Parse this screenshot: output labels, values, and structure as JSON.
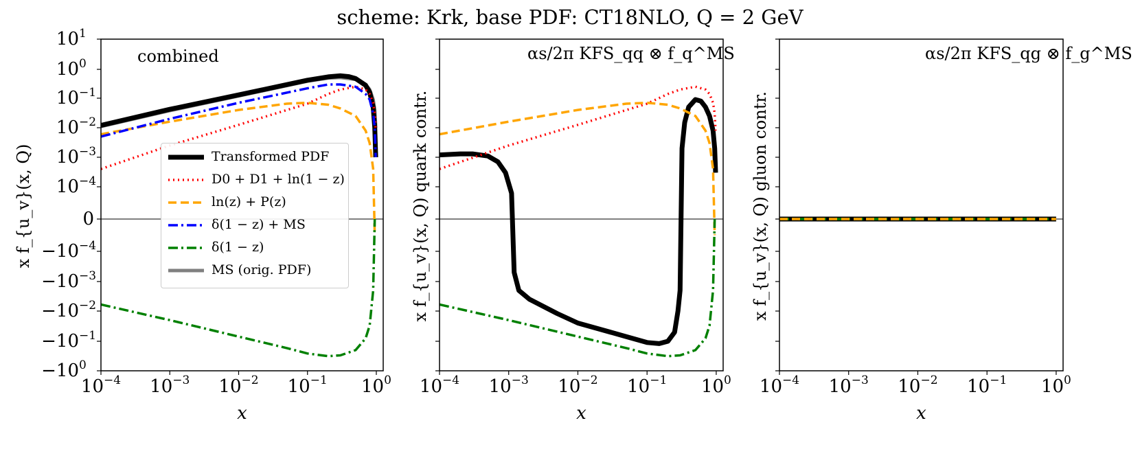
{
  "title": "scheme: Krk, base PDF: CT18NLO, Q = 2 GeV",
  "chart_data": [
    {
      "type": "line",
      "panel_title": "combined",
      "xlabel": "x",
      "ylabel": "x f_{u_v}(x, Q)",
      "xscale": "log",
      "yscale": "symlog",
      "xlim": [
        0.0001,
        1.0
      ],
      "ylim": [
        -1.0,
        10.0
      ],
      "xticks": [
        "10^-4",
        "10^-3",
        "10^-2",
        "10^-1",
        "10^0"
      ],
      "yticks": [
        "10^1",
        "10^0",
        "10^-1",
        "10^-2",
        "10^-3",
        "10^-4",
        "0",
        "-10^-4",
        "-10^-3",
        "-10^-2",
        "-10^-1",
        "-10^0"
      ],
      "series": [
        {
          "name": "MS-bar (orig. PDF)",
          "style": "solid",
          "color": "#808080",
          "x": [
            0.0001,
            0.001,
            0.01,
            0.1,
            0.2,
            0.3,
            0.5,
            0.7,
            0.8,
            0.9,
            0.95,
            0.98
          ],
          "y": [
            0.011,
            0.038,
            0.12,
            0.39,
            0.5,
            0.52,
            0.45,
            0.3,
            0.2,
            0.09,
            0.04,
            0.01
          ]
        },
        {
          "name": "Transformed PDF",
          "style": "solid",
          "color": "#000000",
          "x": [
            0.0001,
            0.001,
            0.01,
            0.1,
            0.2,
            0.3,
            0.4,
            0.5,
            0.7,
            0.8,
            0.9,
            0.95,
            0.98
          ],
          "y": [
            0.012,
            0.042,
            0.13,
            0.42,
            0.55,
            0.6,
            0.56,
            0.48,
            0.28,
            0.16,
            0.05,
            0.01,
            0.001
          ]
        },
        {
          "name": "D0 + D1 + ln(1-z)",
          "style": "dotted",
          "color": "#ff0000",
          "x": [
            0.0001,
            0.001,
            0.01,
            0.1,
            0.2,
            0.3,
            0.5,
            0.7,
            0.8,
            0.9,
            0.95,
            0.98
          ],
          "y": [
            0.0004,
            0.0025,
            0.0125,
            0.065,
            0.14,
            0.2,
            0.25,
            0.2,
            0.14,
            0.07,
            0.03,
            0.008
          ]
        },
        {
          "name": "ln(z) + P(z)",
          "style": "dashed",
          "color": "#ffa500",
          "x": [
            0.0001,
            0.001,
            0.01,
            0.05,
            0.1,
            0.2,
            0.3,
            0.5,
            0.7,
            0.8,
            0.9,
            0.95
          ],
          "y": [
            0.006,
            0.016,
            0.04,
            0.065,
            0.07,
            0.06,
            0.045,
            0.025,
            0.008,
            0.003,
            0.0004,
            -5e-05
          ]
        },
        {
          "name": "delta(1-z) + MS-bar",
          "style": "dashdot",
          "color": "#0000ff",
          "x": [
            0.0001,
            0.001,
            0.01,
            0.1,
            0.2,
            0.3,
            0.5,
            0.7,
            0.8,
            0.9,
            0.95,
            0.98
          ],
          "y": [
            0.005,
            0.02,
            0.07,
            0.22,
            0.3,
            0.3,
            0.25,
            0.14,
            0.09,
            0.03,
            0.01,
            0.001
          ]
        },
        {
          "name": "delta(1-z)",
          "style": "dashdot",
          "color": "#008000",
          "x": [
            0.0001,
            0.001,
            0.01,
            0.05,
            0.1,
            0.2,
            0.3,
            0.5,
            0.7,
            0.8,
            0.9,
            0.95
          ],
          "y": [
            -0.006,
            -0.02,
            -0.07,
            -0.17,
            -0.26,
            -0.32,
            -0.3,
            -0.2,
            -0.08,
            -0.03,
            -0.002,
            0.0
          ]
        }
      ],
      "legend": [
        {
          "label": "Transformed PDF",
          "color": "#000000",
          "style": "solid"
        },
        {
          "label": "D0 + D1 + ln(1 − z)",
          "color": "#ff0000",
          "style": "dotted"
        },
        {
          "label": "ln(z) + P(z)",
          "color": "#ffa500",
          "style": "dashed"
        },
        {
          "label": "δ(1 − z) + MS",
          "color": "#0000ff",
          "style": "dashdot"
        },
        {
          "label": "δ(1 − z)",
          "color": "#008000",
          "style": "dashdot"
        },
        {
          "label": "MS (orig. PDF)",
          "color": "#808080",
          "style": "solid"
        }
      ]
    },
    {
      "type": "line",
      "panel_title": "αs/2π KFS_qq ⊗ f_q^MS",
      "xlabel": "x",
      "ylabel": "x f_{u_v}(x, Q) quark contr.",
      "xscale": "log",
      "yscale": "symlog",
      "xlim": [
        0.0001,
        1.0
      ],
      "ylim": [
        -1.0,
        10.0
      ],
      "series": [
        {
          "name": "Transformed PDF",
          "style": "solid",
          "color": "#000000",
          "x": [
            0.0001,
            0.0002,
            0.0003,
            0.0005,
            0.0007,
            0.0009,
            0.0011,
            0.0012,
            0.0014,
            0.002,
            0.005,
            0.01,
            0.05,
            0.1,
            0.15,
            0.2,
            0.25,
            0.28,
            0.3,
            0.32,
            0.35,
            0.4,
            0.5,
            0.6,
            0.7,
            0.8,
            0.9,
            0.95,
            0.98
          ],
          "y": [
            0.0012,
            0.0013,
            0.0013,
            0.0011,
            0.0007,
            0.0003,
            8e-05,
            -0.0005,
            -0.002,
            -0.004,
            -0.012,
            -0.025,
            -0.07,
            -0.11,
            -0.12,
            -0.1,
            -0.05,
            -0.01,
            -0.002,
            0.002,
            0.015,
            0.05,
            0.09,
            0.08,
            0.05,
            0.025,
            0.008,
            0.002,
            0.0003
          ]
        },
        {
          "name": "D0 + D1 + ln(1-z)",
          "style": "dotted",
          "color": "#ff0000",
          "x": [
            0.0001,
            0.001,
            0.01,
            0.1,
            0.2,
            0.3,
            0.5,
            0.7,
            0.8,
            0.9,
            0.95,
            0.98
          ],
          "y": [
            0.0004,
            0.0025,
            0.0125,
            0.065,
            0.14,
            0.2,
            0.25,
            0.2,
            0.14,
            0.07,
            0.03,
            0.008
          ]
        },
        {
          "name": "ln(z) + P(z)",
          "style": "dashed",
          "color": "#ffa500",
          "x": [
            0.0001,
            0.001,
            0.01,
            0.05,
            0.1,
            0.2,
            0.3,
            0.5,
            0.7,
            0.8,
            0.9,
            0.95
          ],
          "y": [
            0.006,
            0.016,
            0.04,
            0.065,
            0.07,
            0.06,
            0.045,
            0.025,
            0.008,
            0.003,
            0.0004,
            -5e-05
          ]
        },
        {
          "name": "delta(1-z)",
          "style": "dashdot",
          "color": "#008000",
          "x": [
            0.0001,
            0.001,
            0.01,
            0.05,
            0.1,
            0.2,
            0.3,
            0.5,
            0.7,
            0.8,
            0.9,
            0.95
          ],
          "y": [
            -0.006,
            -0.02,
            -0.07,
            -0.17,
            -0.26,
            -0.32,
            -0.3,
            -0.2,
            -0.08,
            -0.03,
            -0.002,
            0.0
          ]
        }
      ]
    },
    {
      "type": "line",
      "panel_title": "αs/2π KFS_qg ⊗ f_g^MS",
      "xlabel": "x",
      "ylabel": "x f_{u_v}(x, Q) gluon contr.",
      "xscale": "log",
      "yscale": "symlog",
      "xlim": [
        0.0001,
        1.0
      ],
      "ylim": [
        -1.0,
        10.0
      ],
      "series": [
        {
          "name": "Transformed PDF",
          "style": "solid",
          "color": "#000000",
          "x": [
            0.0001,
            1.0
          ],
          "y": [
            0,
            0
          ]
        },
        {
          "name": "delta(1-z)",
          "style": "dashdot",
          "color": "#008000",
          "x": [
            0.0001,
            1.0
          ],
          "y": [
            0,
            0
          ]
        },
        {
          "name": "ln(z) + P(z)",
          "style": "dashed",
          "color": "#ffa500",
          "x": [
            0.0001,
            1.0
          ],
          "y": [
            0,
            0
          ]
        }
      ]
    }
  ],
  "labels": {
    "xtick": [
      "10",
      "10",
      "10",
      "10",
      "10"
    ],
    "xtick_exp": [
      "−4",
      "−3",
      "−2",
      "−1",
      "0"
    ],
    "ytick_base": [
      "10",
      "10",
      "10",
      "10",
      "10",
      "10",
      "0",
      "−10",
      "−10",
      "−10",
      "−10",
      "−10"
    ],
    "ytick_exp": [
      "1",
      "0",
      "−1",
      "−2",
      "−3",
      "−4",
      "",
      "−4",
      "−3",
      "−2",
      "−1",
      "0"
    ]
  }
}
